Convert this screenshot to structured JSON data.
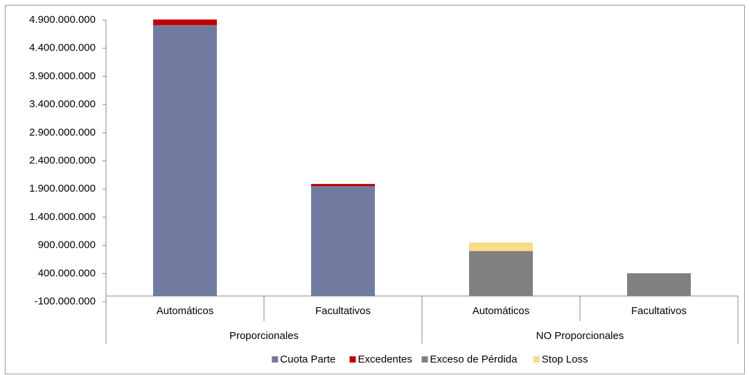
{
  "chart_data": {
    "type": "stacked_bar",
    "groups": [
      {
        "label": "Proporcionales",
        "categories": [
          "Automáticos",
          "Facultativos"
        ]
      },
      {
        "label": "NO Proporcionales",
        "categories": [
          "Automáticos",
          "Facultativos"
        ]
      }
    ],
    "series": [
      {
        "name": "Cuota Parte",
        "color": "#717ba0",
        "values": [
          4810000000,
          1950000000,
          0,
          0
        ]
      },
      {
        "name": "Excedentes",
        "color": "#c00000",
        "values": [
          100000000,
          40000000,
          0,
          0
        ]
      },
      {
        "name": "Exceso de Pérdida",
        "color": "#808080",
        "values": [
          0,
          0,
          800000000,
          405000000
        ]
      },
      {
        "name": "Stop Loss",
        "color": "#fadc88",
        "values": [
          0,
          0,
          150000000,
          0
        ]
      }
    ],
    "ylim": [
      -100000000,
      4900000000
    ],
    "yticks": [
      {
        "value": -100000000,
        "label": "-100.000.000"
      },
      {
        "value": 400000000,
        "label": "400.000.000"
      },
      {
        "value": 900000000,
        "label": "900.000.000"
      },
      {
        "value": 1400000000,
        "label": "1.400.000.000"
      },
      {
        "value": 1900000000,
        "label": "1.900.000.000"
      },
      {
        "value": 2400000000,
        "label": "2.400.000.000"
      },
      {
        "value": 2900000000,
        "label": "2.900.000.000"
      },
      {
        "value": 3400000000,
        "label": "3.400.000.000"
      },
      {
        "value": 3900000000,
        "label": "3.900.000.000"
      },
      {
        "value": 4400000000,
        "label": "4.400.000.000"
      },
      {
        "value": 4900000000,
        "label": "4.900.000.000"
      }
    ],
    "legend": "bottom"
  }
}
